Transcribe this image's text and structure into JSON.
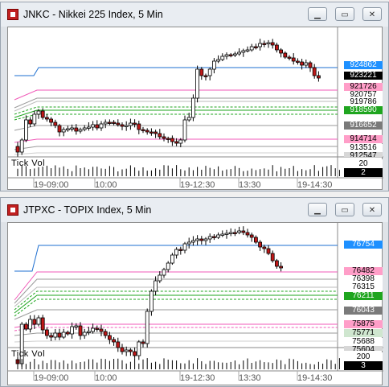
{
  "windows": [
    {
      "title": "JNKC - Nikkei 225 Index, 5 Min",
      "tick_vol_label": "Tick Vol",
      "vol_values": [
        "20",
        "2"
      ],
      "time_labels": [
        "19-09:00",
        "10:00",
        "19-12:30",
        "13:30",
        "19-14:30"
      ],
      "price_tags": [
        {
          "label": "924862",
          "bg": "#1e90ff",
          "fg": "#ffffff"
        },
        {
          "label": "923221",
          "bg": "#000000",
          "fg": "#ffffff"
        },
        {
          "label": "921726",
          "bg": "#ff9ec8",
          "fg": "#000000"
        },
        {
          "label": "920757",
          "bg": "#ffffff",
          "fg": "#000000"
        },
        {
          "label": "919786",
          "bg": "#ffffff",
          "fg": "#000000"
        },
        {
          "label": "918590",
          "bg": "#1fa51f",
          "fg": "#ffffff"
        },
        {
          "label": "916652",
          "bg": "#7a7a7a",
          "fg": "#ffffff"
        },
        {
          "label": "914714",
          "bg": "#ff9ec8",
          "fg": "#000000"
        },
        {
          "label": "913516",
          "bg": "#ffffff",
          "fg": "#000000"
        },
        {
          "label": "912547",
          "bg": "#d7d7d7",
          "fg": "#000000"
        }
      ]
    },
    {
      "title": "JTPXC - TOPIX Index, 5 Min",
      "tick_vol_label": "Tick Vol",
      "vol_values": [
        "200",
        "3"
      ],
      "time_labels": [
        "19-09:00",
        "10:00",
        "19-12:30",
        "13:30",
        "19-14:30"
      ],
      "price_tags": [
        {
          "label": "76754",
          "bg": "#1e90ff",
          "fg": "#ffffff"
        },
        {
          "label": "76482",
          "bg": "#ff9ec8",
          "fg": "#000000"
        },
        {
          "label": "76398",
          "bg": "#ffffff",
          "fg": "#000000"
        },
        {
          "label": "76315",
          "bg": "#ffffff",
          "fg": "#000000"
        },
        {
          "label": "76211",
          "bg": "#1fa51f",
          "fg": "#ffffff"
        },
        {
          "label": "76043",
          "bg": "#7a7a7a",
          "fg": "#ffffff"
        },
        {
          "label": "75875",
          "bg": "#ff9ec8",
          "fg": "#000000"
        },
        {
          "label": "75771",
          "bg": "#cfe6cf",
          "fg": "#000000"
        },
        {
          "label": "75688",
          "bg": "#ffffff",
          "fg": "#000000"
        },
        {
          "label": "75604",
          "bg": "#d7d7d7",
          "fg": "#000000"
        }
      ]
    }
  ],
  "colors": {
    "up_candle": "#ffffff",
    "down_candle": "#c01818",
    "wick": "#000000",
    "upper_line": "#1e6fd0",
    "pink_line": "#f05ab8",
    "green_line": "#1fa51f",
    "gray_line": "#9a9a9a"
  }
}
